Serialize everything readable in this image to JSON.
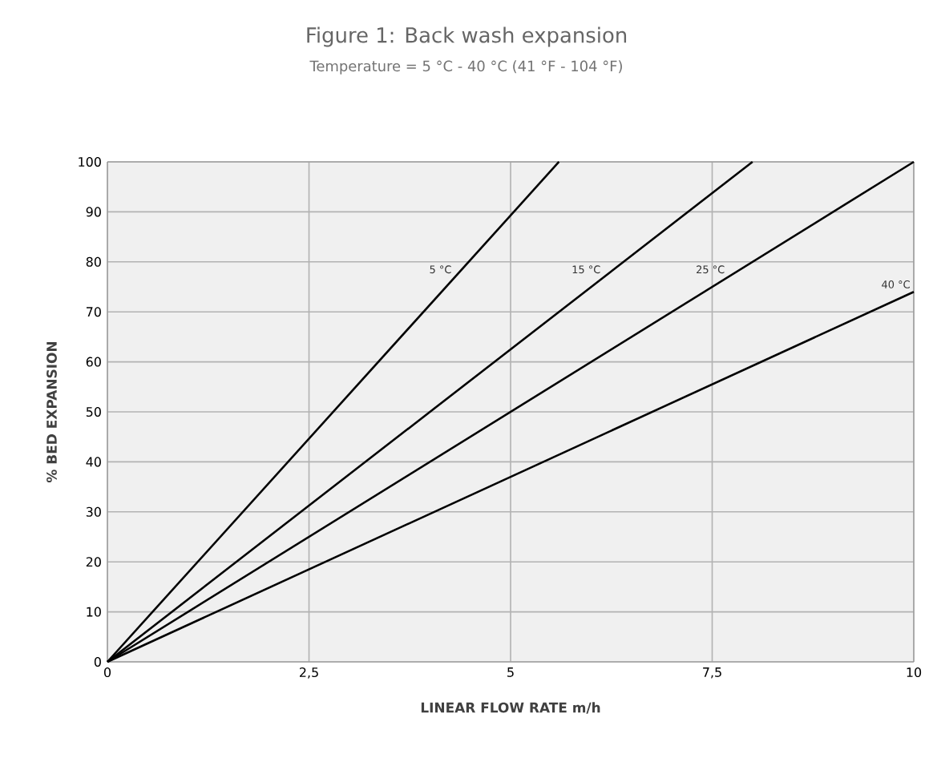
{
  "chart_data": {
    "type": "line",
    "title": "Figure 1: Back wash expansion",
    "subtitle": "Temperature = 5 °C - 40 °C (41 °F - 104 °F)",
    "xlabel": "LINEAR FLOW RATE m/h",
    "ylabel": "% BED EXPANSION",
    "series": [
      {
        "name": "5 °C",
        "color": "#000000",
        "x": [
          0,
          5.6
        ],
        "values": [
          0,
          100
        ]
      },
      {
        "name": "15 °C",
        "color": "#000000",
        "x": [
          0,
          8
        ],
        "values": [
          0,
          100
        ]
      },
      {
        "name": "25 °C",
        "color": "#000000",
        "x": [
          0,
          10
        ],
        "values": [
          0,
          100
        ]
      },
      {
        "name": "40 °C",
        "color": "#000000",
        "x": [
          0,
          10
        ],
        "values": [
          0,
          74
        ]
      }
    ],
    "xlim": [
      0,
      10
    ],
    "ylim": [
      0,
      100
    ],
    "xticks": [
      0,
      {
        "value": 2.5,
        "label": "2,5"
      },
      5,
      {
        "value": 7.5,
        "label": "7,5"
      },
      10
    ],
    "yticks": [
      0,
      10,
      20,
      30,
      40,
      50,
      60,
      70,
      80,
      90,
      100
    ],
    "grid": true,
    "legend": false,
    "marker": "none",
    "line_style": "solid"
  }
}
